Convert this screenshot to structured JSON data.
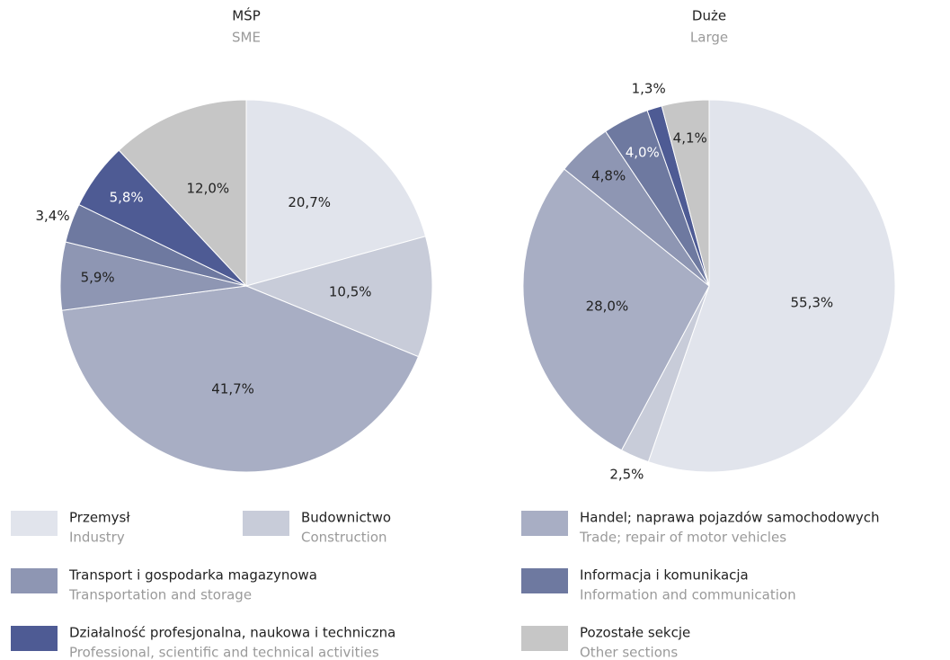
{
  "chart_data": [
    {
      "type": "pie",
      "title": "MŚP",
      "subtitle": "SME",
      "values": [
        20.7,
        10.5,
        41.7,
        5.9,
        3.4,
        5.8,
        12.0
      ],
      "value_labels": [
        "20,7%",
        "10,5%",
        "41,7%",
        "5,9%",
        "3,4%",
        "5,8%",
        "12,0%"
      ]
    },
    {
      "type": "pie",
      "title": "Duże",
      "subtitle": "Large",
      "values": [
        55.3,
        2.5,
        28.0,
        4.8,
        4.0,
        1.3,
        4.1
      ],
      "value_labels": [
        "55,3%",
        "2,5%",
        "28,0%",
        "4,8%",
        "4,0%",
        "1,3%",
        "4,1%"
      ]
    }
  ],
  "legend": [
    {
      "label": "Przemysł",
      "sublabel": "Industry",
      "color": "#e1e4ec"
    },
    {
      "label": "Budownictwo",
      "sublabel": "Construction",
      "color": "#c8ccd9"
    },
    {
      "label": "Handel; naprawa pojazdów samochodowych",
      "sublabel": "Trade; repair of motor vehicles",
      "color": "#a8aec4"
    },
    {
      "label": "Transport i gospodarka magazynowa",
      "sublabel": "Transportation and storage",
      "color": "#8e96b3"
    },
    {
      "label": "Informacja i komunikacja",
      "sublabel": "Information and communication",
      "color": "#6e79a0"
    },
    {
      "label": "Działalność profesjonalna, naukowa i techniczna",
      "sublabel": "Professional, scientific and technical activities",
      "color": "#4e5b94"
    },
    {
      "label": "Pozostałe sekcje",
      "sublabel": "Other sections",
      "color": "#c6c6c6"
    }
  ]
}
